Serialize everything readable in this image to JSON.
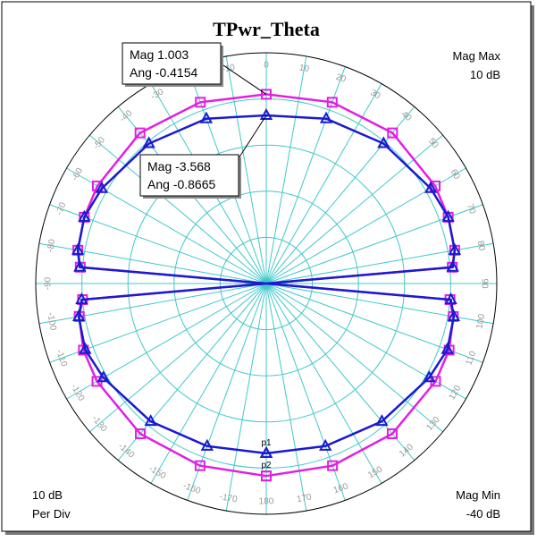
{
  "chart_data": {
    "type": "polar",
    "title": "TPwr_Theta",
    "mag_max_title": "Mag Max",
    "mag_max": {
      "value": 10,
      "label": "10 dB"
    },
    "mag_min_title": "Mag Min",
    "mag_min": {
      "value": -40,
      "label": "-40 dB"
    },
    "per_div": {
      "value": 10,
      "label": "10 dB"
    },
    "per_div_title": "Per Div",
    "angle_ticks": [
      0,
      10,
      20,
      30,
      40,
      50,
      60,
      70,
      80,
      90,
      100,
      110,
      120,
      130,
      140,
      150,
      160,
      170,
      180,
      -170,
      -160,
      -150,
      -140,
      -130,
      -120,
      -110,
      -100,
      -90,
      -80,
      -70,
      -60,
      -50,
      -40,
      -30,
      -20,
      -10
    ],
    "x": [
      -180,
      -160,
      -140,
      -120,
      -110,
      -100,
      -95,
      -90,
      -85,
      -80,
      -70,
      -60,
      -40,
      -20,
      0,
      20,
      40,
      60,
      70,
      80,
      85,
      90,
      95,
      100,
      110,
      120,
      140,
      160,
      180
    ],
    "series": [
      {
        "name": "p2",
        "color": "#e020e0",
        "marker": "square",
        "values": [
          1.7,
          2.0,
          2.5,
          2.4,
          2.2,
          1.2,
          0.0,
          -40,
          0.5,
          1.5,
          2.0,
          2.3,
          2.6,
          1.8,
          1.003,
          1.8,
          2.6,
          2.3,
          2.0,
          1.5,
          0.5,
          -40,
          0.0,
          1.2,
          2.2,
          2.4,
          2.5,
          2.0,
          1.7
        ]
      },
      {
        "name": "p1",
        "color": "#1a1ad0",
        "marker": "triangle",
        "values": [
          -3.2,
          -2.5,
          -1.0,
          0.8,
          1.8,
          1.3,
          0.2,
          -40,
          0.6,
          1.5,
          2.0,
          1.2,
          -0.4,
          -2.0,
          -3.568,
          -2.0,
          -0.4,
          1.2,
          2.0,
          1.5,
          0.6,
          -40,
          0.2,
          1.3,
          1.8,
          0.8,
          -1.0,
          -2.5,
          -3.2
        ]
      }
    ],
    "annotations": [
      {
        "lines": [
          "Mag 1.003",
          "Ang -0.4154"
        ]
      },
      {
        "lines": [
          "Mag -3.568",
          "Ang -0.8665"
        ]
      }
    ]
  }
}
